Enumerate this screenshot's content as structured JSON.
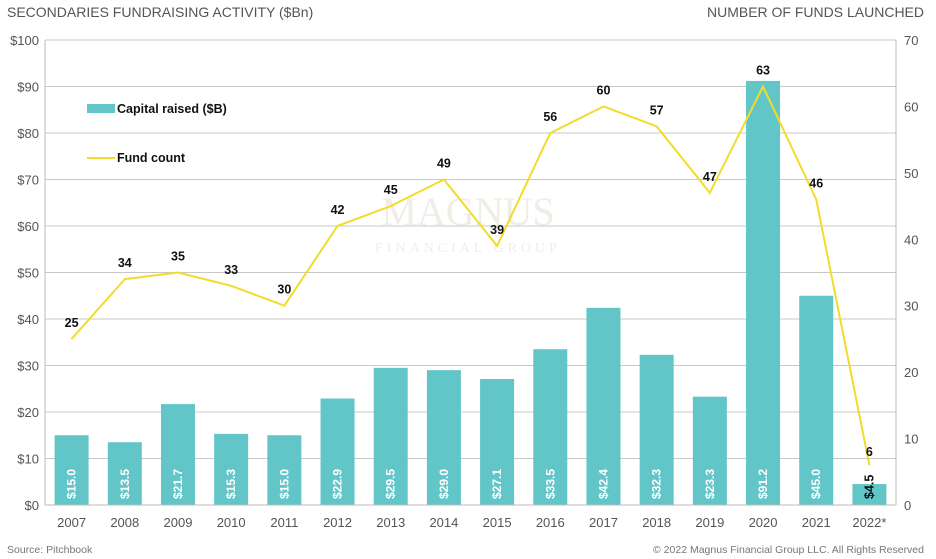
{
  "chart_data": {
    "type": "bar+line",
    "title_left": "SECONDARIES FUNDRAISING ACTIVITY ($Bn)",
    "title_right": "NUMBER OF FUNDS LAUNCHED",
    "categories": [
      "2007",
      "2008",
      "2009",
      "2010",
      "2011",
      "2012",
      "2013",
      "2014",
      "2015",
      "2016",
      "2017",
      "2018",
      "2019",
      "2020",
      "2021",
      "2022*"
    ],
    "series": [
      {
        "name": "Capital raised ($B)",
        "type": "bar",
        "axis": "left",
        "color": "#62C6C9",
        "values": [
          15.0,
          13.5,
          21.7,
          15.3,
          15.0,
          22.9,
          29.5,
          29.0,
          27.1,
          33.5,
          42.4,
          32.3,
          23.3,
          91.2,
          45.0,
          4.5
        ],
        "labels": [
          "$15.0",
          "$13.5",
          "$21.7",
          "$15.3",
          "$15.0",
          "$22.9",
          "$29.5",
          "$29.0",
          "$27.1",
          "$33.5",
          "$42.4",
          "$32.3",
          "$23.3",
          "$91.2",
          "$45.0",
          "$4.5"
        ]
      },
      {
        "name": "Fund count",
        "type": "line",
        "axis": "right",
        "color": "#F2DC2A",
        "values": [
          25,
          34,
          35,
          33,
          30,
          42,
          45,
          49,
          39,
          56,
          60,
          57,
          47,
          63,
          46,
          6
        ],
        "labels": [
          "25",
          "34",
          "35",
          "33",
          "30",
          "42",
          "45",
          "49",
          "39",
          "56",
          "60",
          "57",
          "47",
          "63",
          "46",
          "6"
        ]
      }
    ],
    "y_left": {
      "range": [
        0,
        100
      ],
      "ticks": [
        "$0",
        "$10",
        "$20",
        "$30",
        "$40",
        "$50",
        "$60",
        "$70",
        "$80",
        "$90",
        "$100"
      ]
    },
    "y_right": {
      "range": [
        0,
        70
      ],
      "ticks": [
        "0",
        "10",
        "20",
        "30",
        "40",
        "50",
        "60",
        "70"
      ]
    },
    "grid": true,
    "legend_position": "top-left",
    "watermark": "MAGNUS FINANCIAL GROUP",
    "source": "Source: Pitchbook",
    "copyright": "© 2022 Magnus Financial Group LLC. All Rights Reserved"
  }
}
